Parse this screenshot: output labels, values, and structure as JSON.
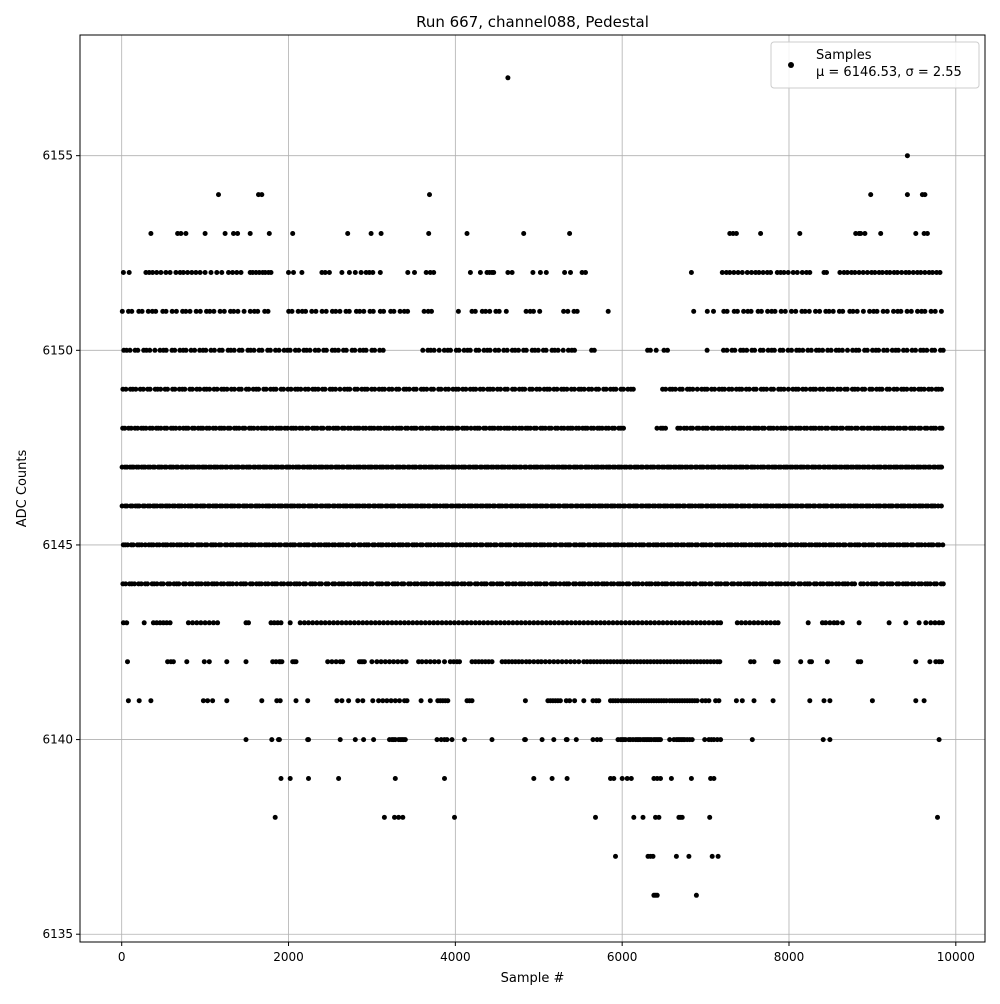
{
  "chart_data": {
    "type": "scatter",
    "title": "Run 667, channel088, Pedestal",
    "xlabel": "Sample #",
    "ylabel": "ADC Counts",
    "xlim": [
      -500,
      10350
    ],
    "ylim": [
      6134.8,
      6158.1
    ],
    "xticks": [
      0,
      2000,
      4000,
      6000,
      8000,
      10000
    ],
    "yticks": [
      6135,
      6140,
      6145,
      6150,
      6155
    ],
    "grid": true,
    "legend": {
      "placement": "top-right",
      "series_name": "Samples",
      "stats_line": "μ = 6146.53, σ = 2.55"
    },
    "sample_count": 9850,
    "marker_color": "#000000",
    "series": [
      {
        "name": "Samples",
        "bands": [
          {
            "y": 6136,
            "x": [
              6380,
              6400,
              6420,
              6890
            ]
          },
          {
            "y": 6137,
            "x": [
              5920,
              6310,
              6340,
              6370,
              6650,
              6800,
              7080,
              7150
            ]
          },
          {
            "y": 6138,
            "x": [
              1840,
              3150,
              3270,
              3320,
              3370,
              3990,
              5680,
              6140,
              6250,
              6400,
              6440,
              6680,
              6700,
              6720,
              7050,
              9780
            ]
          },
          {
            "y": 6139,
            "x": [
              1910,
              2020,
              2240,
              2600,
              3280,
              3870,
              4940,
              5160,
              5340,
              5860,
              5900,
              6000,
              6060,
              6110,
              6380,
              6420,
              6460,
              6590,
              6830,
              7060,
              7100
            ]
          },
          {
            "y": 6140,
            "x": [
              1490,
              1800,
              1880,
              1890,
              2230,
              2240,
              2620,
              2800,
              2900,
              3020,
              3210,
              3240,
              3260,
              3280,
              3320,
              3340,
              3360,
              3380,
              3400,
              3780,
              3830,
              3870,
              3900,
              3960,
              4110,
              4440,
              4830,
              4840,
              5040,
              5180,
              5330,
              5340,
              5450,
              5650,
              5700,
              5740,
              5950,
              5980,
              6000,
              6020,
              6040,
              6080,
              6100,
              6130,
              6160,
              6180,
              6200,
              6220,
              6250,
              6270,
              6290,
              6310,
              6330,
              6350,
              6380,
              6400,
              6420,
              6440,
              6460,
              6570,
              6620,
              6650,
              6670,
              6690,
              6710,
              6730,
              6750,
              6780,
              6810,
              6840,
              6990,
              7040,
              7070,
              7100,
              7140,
              7180,
              7560,
              8410,
              8490,
              9800
            ]
          },
          {
            "y": 6141,
            "x": [
              80,
              210,
              350,
              980,
              1030,
              1090,
              1260,
              1680,
              1860,
              1900,
              2090,
              2230,
              2580,
              2640,
              2720,
              2830,
              2890,
              3010,
              3080,
              3130,
              3180,
              3230,
              3280,
              3330,
              3390,
              3420,
              3590,
              3700,
              3790,
              3820,
              3850,
              3880,
              3910,
              4140,
              4170,
              4200,
              4840,
              5110,
              5140,
              5170,
              5200,
              5230,
              5260,
              5330,
              5370,
              5430,
              5540,
              5650,
              5690,
              5720,
              5860,
              5890,
              5920,
              5950,
              5990,
              6020,
              6050,
              6080,
              6110,
              6140,
              6170,
              6200,
              6230,
              6260,
              6290,
              6320,
              6350,
              6380,
              6410,
              6440,
              6470,
              6500,
              6530,
              6570,
              6600,
              6630,
              6660,
              6690,
              6720,
              6750,
              6780,
              6810,
              6840,
              6870,
              6900,
              6960,
              7000,
              7040,
              7120,
              7160,
              7370,
              7440,
              7580,
              7810,
              8250,
              8420,
              8490,
              9000,
              9520,
              9620
            ]
          },
          {
            "y": 6142,
            "x": [
              70,
              550,
              590,
              620,
              780,
              990,
              1050,
              1260,
              1490,
              1810,
              1850,
              1890,
              1900,
              1920,
              2050,
              2070,
              2090,
              2470,
              2520,
              2570,
              2620,
              2650,
              2850,
              2870,
              2890,
              2910,
              3000,
              3060,
              3110,
              3160,
              3210,
              3260,
              3310,
              3360,
              3410,
              3560,
              3600,
              3650,
              3700,
              3750,
              3800,
              3870,
              3940,
              3980,
              4020,
              4050,
              4200,
              4240,
              4280,
              4320,
              4360,
              4400,
              4440,
              4560,
              4600,
              4640,
              4680,
              4720,
              4760,
              4800,
              4850,
              4890,
              4940,
              4990,
              5030,
              5080,
              5130,
              5180,
              5230,
              5280,
              5330,
              5380,
              5430,
              5480,
              5540,
              5580,
              5620,
              5660,
              5700,
              5740,
              5780,
              5820,
              5860,
              5900,
              5940,
              5980,
              6020,
              6060,
              6100,
              6140,
              6180,
              6220,
              6260,
              6300,
              6340,
              6380,
              6420,
              6460,
              6500,
              6540,
              6580,
              6620,
              6660,
              6700,
              6740,
              6780,
              6820,
              6860,
              6900,
              6940,
              6980,
              7020,
              7060,
              7100,
              7140,
              7170,
              7540,
              7580,
              7840,
              7870,
              8140,
              8250,
              8270,
              8460,
              8830,
              8860,
              9520,
              9690,
              9760,
              9800,
              9830
            ]
          },
          {
            "y": 6143,
            "x": [
              20,
              60,
              270,
              380,
              420,
              460,
              500,
              540,
              580,
              800,
              850,
              900,
              950,
              1000,
              1050,
              1100,
              1150,
              1490,
              1520,
              1790,
              1830,
              1870,
              1910,
              2020,
              2140,
              2190,
              2240,
              2290,
              2340,
              2390,
              2440,
              2490,
              2540,
              2590,
              2640,
              2690,
              2740,
              2790,
              2840,
              2890,
              2940,
              2990,
              3040,
              3090,
              3140,
              3190,
              3240,
              3290,
              3340,
              3390,
              3440,
              3490,
              3540,
              3590,
              3640,
              3690,
              3740,
              3790,
              3840,
              3890,
              3940,
              3990,
              4040,
              4090,
              4140,
              4190,
              4240,
              4290,
              4340,
              4390,
              4440,
              4490,
              4540,
              4590,
              4640,
              4690,
              4740,
              4790,
              4840,
              4890,
              4940,
              4990,
              5040,
              5090,
              5140,
              5190,
              5240,
              5290,
              5340,
              5390,
              5440,
              5490,
              5540,
              5590,
              5640,
              5690,
              5740,
              5790,
              5840,
              5890,
              5940,
              5990,
              6040,
              6090,
              6140,
              6190,
              6240,
              6290,
              6340,
              6390,
              6440,
              6490,
              6540,
              6590,
              6640,
              6690,
              6740,
              6790,
              6840,
              6890,
              6940,
              6990,
              7040,
              7090,
              7140,
              7180,
              7380,
              7430,
              7480,
              7530,
              7580,
              7630,
              7680,
              7730,
              7780,
              7830,
              7870,
              8230,
              8400,
              8440,
              8490,
              8540,
              8580,
              8640,
              8840,
              9200,
              9400,
              9560,
              9640,
              9700,
              9750,
              9800,
              9840
            ]
          },
          {
            "y": 6144,
            "step": 38,
            "gaps": [
              [
                8800,
                8840
              ]
            ]
          },
          {
            "y": 6145,
            "step": 34,
            "gaps": []
          },
          {
            "y": 6146,
            "step": 30,
            "gaps": []
          },
          {
            "y": 6147,
            "step": 28,
            "gaps": []
          },
          {
            "y": 6148,
            "step": 36,
            "gaps": [
              [
                6060,
                6410
              ],
              [
                6560,
                6650
              ]
            ]
          },
          {
            "y": 6149,
            "step": 42,
            "gaps": [
              [
                6140,
                6480
              ]
            ]
          },
          {
            "y": 6150,
            "step": 48,
            "gaps": [
              [
                3150,
                3580
              ],
              [
                5440,
                5620
              ],
              [
                5720,
                6300
              ],
              [
                6420,
                6500
              ],
              [
                6600,
                6980
              ],
              [
                7020,
                7180
              ]
            ]
          },
          {
            "y": 6151,
            "step": 58,
            "gaps": [
              [
                1820,
                1960
              ],
              [
                3440,
                3620
              ],
              [
                3720,
                4010
              ],
              [
                4060,
                4140
              ],
              [
                4640,
                4780
              ],
              [
                5060,
                5270
              ],
              [
                5470,
                5760
              ],
              [
                5840,
                6840
              ],
              [
                6900,
                7000
              ],
              [
                7100,
                7200
              ]
            ]
          },
          {
            "y": 6152,
            "x": [
              20,
              90,
              290,
              330,
              370,
              420,
              470,
              530,
              580,
              650,
              700,
              740,
              790,
              840,
              890,
              940,
              1000,
              1070,
              1140,
              1200,
              1280,
              1330,
              1380,
              1430,
              1540,
              1570,
              1610,
              1650,
              1690,
              1720,
              1760,
              1790,
              2000,
              2060,
              2160,
              2400,
              2440,
              2490,
              2640,
              2730,
              2800,
              2870,
              2930,
              2970,
              3010,
              3100,
              3430,
              3510,
              3650,
              3700,
              3740,
              4180,
              4300,
              4380,
              4410,
              4440,
              4460,
              4630,
              4680,
              4930,
              5020,
              5090,
              5310,
              5380,
              5520,
              5560,
              6830,
              7200,
              7250,
              7290,
              7340,
              7390,
              7440,
              7500,
              7550,
              7600,
              7640,
              7690,
              7740,
              7780,
              7860,
              7900,
              7940,
              7990,
              8050,
              8100,
              8160,
              8210,
              8250,
              8420,
              8450,
              8610,
              8660,
              8700,
              8750,
              8790,
              8840,
              8890,
              8940,
              8990,
              9030,
              9080,
              9120,
              9170,
              9210,
              9260,
              9300,
              9350,
              9400,
              9440,
              9490,
              9540,
              9580,
              9630,
              9680,
              9720,
              9770,
              9810
            ]
          },
          {
            "y": 6153,
            "x": [
              350,
              670,
              710,
              770,
              1000,
              1240,
              1340,
              1390,
              1540,
              1770,
              2050,
              2710,
              2990,
              3110,
              3680,
              4140,
              4820,
              5370,
              7290,
              7330,
              7370,
              7660,
              8130,
              8800,
              8840,
              8860,
              8910,
              9100,
              9520,
              9620,
              9660
            ]
          },
          {
            "y": 6154,
            "x": [
              1160,
              1640,
              1680,
              3690,
              8980,
              9420,
              9600,
              9630
            ]
          },
          {
            "y": 6155,
            "x": [
              9420
            ]
          },
          {
            "y": 6157,
            "x": [
              4630
            ]
          }
        ]
      }
    ]
  }
}
